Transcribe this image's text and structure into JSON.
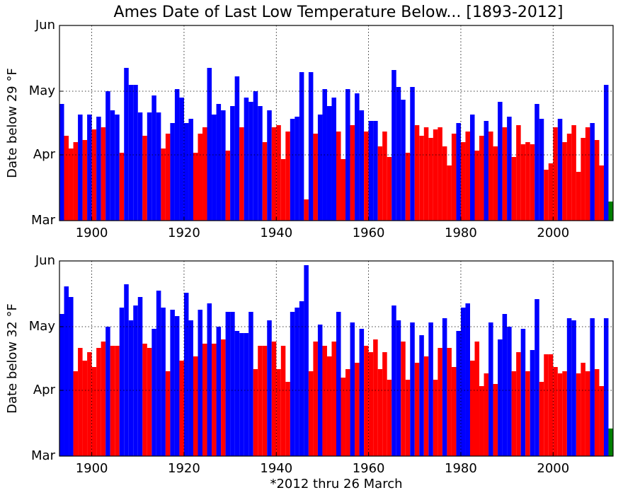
{
  "chart_data": [
    {
      "type": "bar",
      "title": "Ames Date of Last Low Temperature Below... [1893-2012]",
      "ylabel": "Date below 29 °F",
      "x": [
        1893,
        1894,
        1895,
        1896,
        1897,
        1898,
        1899,
        1900,
        1901,
        1902,
        1903,
        1904,
        1905,
        1906,
        1907,
        1908,
        1909,
        1910,
        1911,
        1912,
        1913,
        1914,
        1915,
        1916,
        1917,
        1918,
        1919,
        1920,
        1921,
        1922,
        1923,
        1924,
        1925,
        1926,
        1927,
        1928,
        1929,
        1930,
        1931,
        1932,
        1933,
        1934,
        1935,
        1936,
        1937,
        1938,
        1939,
        1940,
        1941,
        1942,
        1943,
        1944,
        1945,
        1946,
        1947,
        1948,
        1949,
        1950,
        1951,
        1952,
        1953,
        1954,
        1955,
        1956,
        1957,
        1958,
        1959,
        1960,
        1961,
        1962,
        1963,
        1964,
        1965,
        1966,
        1967,
        1968,
        1969,
        1970,
        1971,
        1972,
        1973,
        1974,
        1975,
        1976,
        1977,
        1978,
        1979,
        1980,
        1981,
        1982,
        1983,
        1984,
        1985,
        1986,
        1987,
        1988,
        1989,
        1990,
        1991,
        1992,
        1993,
        1994,
        1995,
        1996,
        1997,
        1998,
        1999,
        2000,
        2001,
        2002,
        2003,
        2004,
        2005,
        2006,
        2007,
        2008,
        2009,
        2010,
        2011,
        2012
      ],
      "values": [
        115,
        100,
        94,
        97,
        110,
        98,
        110,
        103,
        109,
        104,
        121,
        112,
        110,
        92,
        132,
        124,
        124,
        111,
        100,
        111,
        119,
        111,
        94,
        101,
        106,
        122,
        118,
        106,
        108,
        92,
        101,
        104,
        132,
        110,
        115,
        112,
        93,
        114,
        128,
        104,
        118,
        116,
        121,
        114,
        97,
        112,
        104,
        105,
        89,
        102,
        108,
        109,
        130,
        70,
        130,
        101,
        110,
        122,
        114,
        118,
        102,
        89,
        122,
        105,
        120,
        112,
        102,
        107,
        107,
        95,
        102,
        90,
        131,
        123,
        117,
        92,
        123,
        105,
        100,
        104,
        99,
        103,
        104,
        95,
        86,
        101,
        106,
        97,
        102,
        110,
        93,
        100,
        107,
        102,
        95,
        116,
        104,
        109,
        90,
        105,
        96,
        97,
        96,
        115,
        108,
        84,
        87,
        104,
        108,
        97,
        101,
        105,
        83,
        99,
        104,
        106,
        98,
        86,
        124,
        69
      ],
      "colors": [
        "blue",
        "red",
        "red",
        "red",
        "blue",
        "red",
        "blue",
        "red",
        "blue",
        "red",
        "blue",
        "blue",
        "blue",
        "red",
        "blue",
        "blue",
        "blue",
        "blue",
        "red",
        "blue",
        "blue",
        "blue",
        "red",
        "red",
        "blue",
        "blue",
        "blue",
        "blue",
        "blue",
        "red",
        "red",
        "red",
        "blue",
        "blue",
        "blue",
        "blue",
        "red",
        "blue",
        "blue",
        "red",
        "blue",
        "blue",
        "blue",
        "blue",
        "red",
        "blue",
        "red",
        "red",
        "red",
        "red",
        "blue",
        "blue",
        "blue",
        "red",
        "blue",
        "red",
        "blue",
        "blue",
        "blue",
        "blue",
        "red",
        "red",
        "blue",
        "red",
        "blue",
        "blue",
        "red",
        "blue",
        "blue",
        "red",
        "red",
        "red",
        "blue",
        "blue",
        "blue",
        "red",
        "blue",
        "red",
        "red",
        "red",
        "red",
        "red",
        "red",
        "red",
        "red",
        "red",
        "blue",
        "red",
        "red",
        "blue",
        "red",
        "red",
        "blue",
        "red",
        "red",
        "blue",
        "red",
        "blue",
        "red",
        "red",
        "red",
        "red",
        "red",
        "blue",
        "blue",
        "red",
        "red",
        "red",
        "blue",
        "red",
        "red",
        "red",
        "red",
        "red",
        "red",
        "blue",
        "red",
        "red",
        "blue",
        "green"
      ],
      "xlim": [
        1893,
        2013
      ],
      "xticks": [
        1900,
        1920,
        1940,
        1960,
        1980,
        2000
      ],
      "ylim": [
        60,
        152
      ],
      "yticks": [
        {
          "value": 60,
          "label": "Mar"
        },
        {
          "value": 91,
          "label": "Apr"
        },
        {
          "value": 121,
          "label": "May"
        },
        {
          "value": 152,
          "label": "Jun"
        }
      ],
      "grid": true
    },
    {
      "type": "bar",
      "ylabel": "Date below 32 °F",
      "xlabel": "*2012 thru 26 March",
      "x": [
        1893,
        1894,
        1895,
        1896,
        1897,
        1898,
        1899,
        1900,
        1901,
        1902,
        1903,
        1904,
        1905,
        1906,
        1907,
        1908,
        1909,
        1910,
        1911,
        1912,
        1913,
        1914,
        1915,
        1916,
        1917,
        1918,
        1919,
        1920,
        1921,
        1922,
        1923,
        1924,
        1925,
        1926,
        1927,
        1928,
        1929,
        1930,
        1931,
        1932,
        1933,
        1934,
        1935,
        1936,
        1937,
        1938,
        1939,
        1940,
        1941,
        1942,
        1943,
        1944,
        1945,
        1946,
        1947,
        1948,
        1949,
        1950,
        1951,
        1952,
        1953,
        1954,
        1955,
        1956,
        1957,
        1958,
        1959,
        1960,
        1961,
        1962,
        1963,
        1964,
        1965,
        1966,
        1967,
        1968,
        1969,
        1970,
        1971,
        1972,
        1973,
        1974,
        1975,
        1976,
        1977,
        1978,
        1979,
        1980,
        1981,
        1982,
        1983,
        1984,
        1985,
        1986,
        1987,
        1988,
        1989,
        1990,
        1991,
        1992,
        1993,
        1994,
        1995,
        1996,
        1997,
        1998,
        1999,
        2000,
        2001,
        2002,
        2003,
        2004,
        2005,
        2006,
        2007,
        2008,
        2009,
        2010,
        2011,
        2012
      ],
      "values": [
        127,
        140,
        135,
        100,
        111,
        105,
        109,
        102,
        111,
        114,
        121,
        112,
        112,
        130,
        141,
        124,
        131,
        135,
        113,
        111,
        120,
        138,
        130,
        100,
        129,
        126,
        105,
        137,
        124,
        107,
        129,
        113,
        132,
        113,
        121,
        115,
        128,
        128,
        119,
        118,
        118,
        128,
        101,
        112,
        112,
        124,
        114,
        101,
        112,
        95,
        128,
        130,
        133,
        150,
        100,
        114,
        122,
        112,
        107,
        114,
        128,
        97,
        101,
        123,
        104,
        120,
        112,
        109,
        115,
        101,
        109,
        96,
        131,
        124,
        114,
        96,
        123,
        104,
        117,
        107,
        123,
        96,
        111,
        125,
        111,
        102,
        119,
        130,
        132,
        105,
        114,
        93,
        99,
        123,
        94,
        115,
        127,
        121,
        100,
        109,
        120,
        100,
        110,
        134,
        95,
        108,
        108,
        102,
        99,
        100,
        125,
        124,
        99,
        104,
        100,
        125,
        101,
        93,
        125,
        73
      ],
      "colors": [
        "blue",
        "blue",
        "blue",
        "red",
        "red",
        "red",
        "red",
        "red",
        "red",
        "red",
        "blue",
        "red",
        "red",
        "blue",
        "blue",
        "blue",
        "blue",
        "blue",
        "red",
        "red",
        "blue",
        "blue",
        "blue",
        "red",
        "blue",
        "blue",
        "red",
        "blue",
        "blue",
        "red",
        "blue",
        "red",
        "blue",
        "red",
        "blue",
        "red",
        "blue",
        "blue",
        "blue",
        "blue",
        "blue",
        "blue",
        "red",
        "red",
        "red",
        "blue",
        "red",
        "red",
        "red",
        "red",
        "blue",
        "blue",
        "blue",
        "blue",
        "red",
        "red",
        "blue",
        "red",
        "red",
        "red",
        "blue",
        "red",
        "red",
        "blue",
        "red",
        "blue",
        "red",
        "red",
        "red",
        "red",
        "red",
        "red",
        "blue",
        "blue",
        "red",
        "red",
        "blue",
        "red",
        "blue",
        "red",
        "blue",
        "red",
        "red",
        "blue",
        "red",
        "red",
        "blue",
        "blue",
        "blue",
        "red",
        "red",
        "red",
        "red",
        "blue",
        "red",
        "blue",
        "blue",
        "blue",
        "red",
        "red",
        "blue",
        "red",
        "blue",
        "blue",
        "red",
        "red",
        "red",
        "red",
        "red",
        "red",
        "blue",
        "blue",
        "red",
        "red",
        "red",
        "blue",
        "red",
        "red",
        "blue",
        "green"
      ],
      "xlim": [
        1893,
        2013
      ],
      "xticks": [
        1900,
        1920,
        1940,
        1960,
        1980,
        2000
      ],
      "ylim": [
        60,
        152
      ],
      "yticks": [
        {
          "value": 60,
          "label": "Mar"
        },
        {
          "value": 91,
          "label": "Apr"
        },
        {
          "value": 121,
          "label": "May"
        },
        {
          "value": 152,
          "label": "Jun"
        }
      ],
      "grid": true
    }
  ]
}
